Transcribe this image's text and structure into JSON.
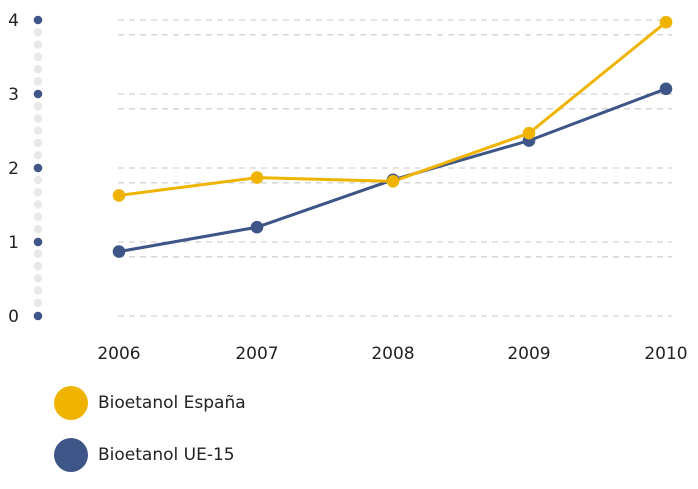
{
  "chart_data": {
    "type": "line",
    "x": [
      "2006",
      "2007",
      "2008",
      "2009",
      "2010"
    ],
    "series": [
      {
        "name": "Bioetanol España",
        "color": "#F0B400",
        "values": [
          1.63,
          1.87,
          1.82,
          2.47,
          3.97
        ]
      },
      {
        "name": "Bioetanol UE-15",
        "color": "#3E5587",
        "values": [
          0.87,
          1.2,
          1.84,
          2.37,
          3.07
        ]
      }
    ],
    "yticks": [
      "0",
      "1",
      "2",
      "3",
      "4"
    ],
    "ylim": [
      0,
      4
    ],
    "grid": true,
    "legend": "bottom-left",
    "axis_dot_color": "#3E5587",
    "axis_spacer_color": "#E8E8E8",
    "grid_color": "#C8C8C8"
  }
}
